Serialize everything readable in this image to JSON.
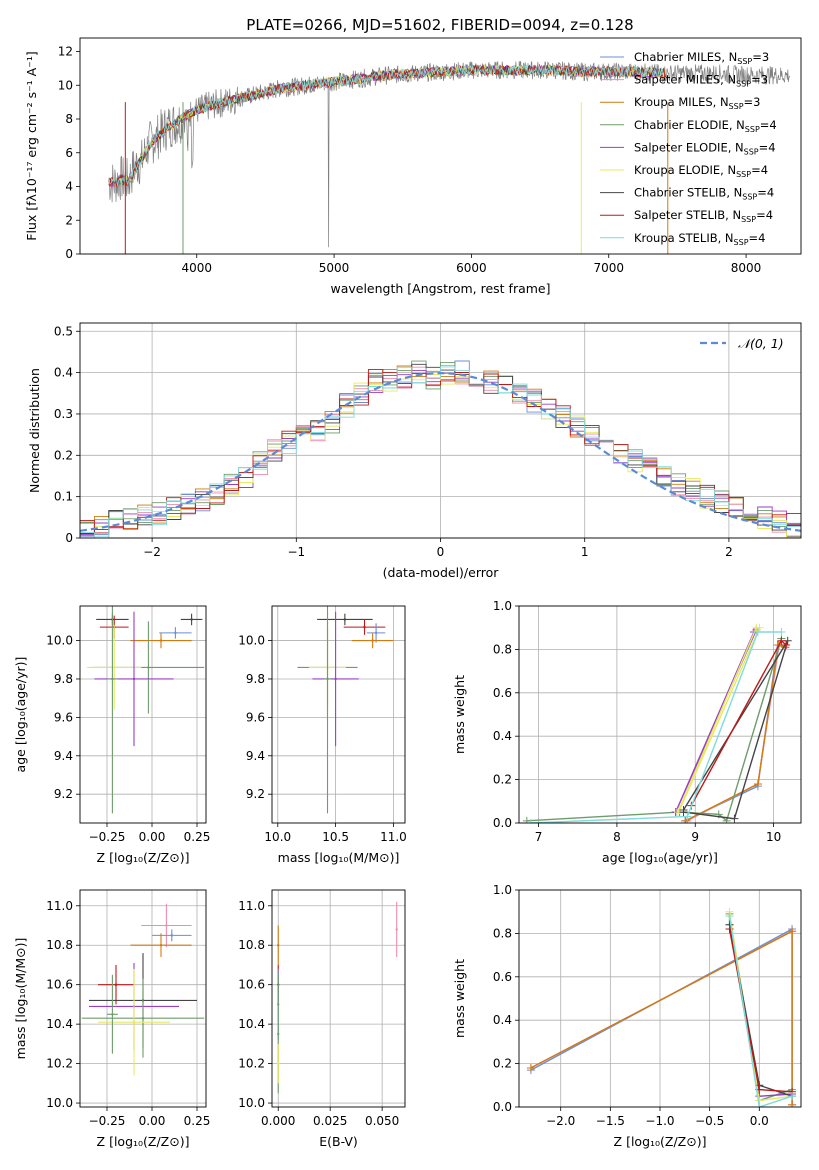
{
  "figure": {
    "title": "PLATE=0266, MJD=51602, FIBERID=0094, z=0.128"
  },
  "colors": [
    "#6c8ed8",
    "#f08cac",
    "#d07a10",
    "#6e9c6a",
    "#9a3ec8",
    "#e6ea60",
    "#444444",
    "#c01818",
    "#7edcdc"
  ],
  "chart_data": [
    {
      "id": "spectrum",
      "type": "line",
      "xlabel": "wavelength [Angstrom, rest frame]",
      "ylabel": "Flux [fλ10⁻¹⁷ erg cm⁻² s⁻¹ A⁻¹]",
      "xlim": [
        3150,
        8400
      ],
      "ylim": [
        0,
        12.8
      ],
      "xticks": [
        4000,
        5000,
        6000,
        7000,
        8000
      ],
      "yticks": [
        0,
        2,
        4,
        6,
        8,
        10,
        12
      ],
      "grid": false,
      "legend_position": "right",
      "data_color": "#808080",
      "observed_x": [
        3360,
        3400,
        3450,
        3500,
        3550,
        3600,
        3650,
        3700,
        3750,
        3800,
        3850,
        3900,
        3950,
        4000,
        4100,
        4200,
        4300,
        4400,
        4500,
        4600,
        4700,
        4800,
        4900,
        5000,
        5200,
        5400,
        5600,
        5800,
        6000,
        6200,
        6400,
        6600,
        6800,
        7000,
        7200,
        7400,
        7600,
        7800,
        8000,
        8200,
        8300
      ],
      "observed_y": [
        4.3,
        4.2,
        4.5,
        4.3,
        5.2,
        5.5,
        6.5,
        6.8,
        7.3,
        7.6,
        7.8,
        8.0,
        8.3,
        8.5,
        8.8,
        9.0,
        9.2,
        9.4,
        9.6,
        9.8,
        9.9,
        10.0,
        10.1,
        10.2,
        10.4,
        10.6,
        10.7,
        10.8,
        10.9,
        10.9,
        10.9,
        10.9,
        10.8,
        10.8,
        10.8,
        10.7,
        10.7,
        10.7,
        10.6,
        10.6,
        10.6
      ],
      "model_x": [
        3360,
        3400,
        3450,
        3500,
        3550,
        3600,
        3650,
        3700,
        3750,
        3800,
        3850,
        3900,
        3950,
        4000,
        4100,
        4200,
        4300,
        4400,
        4500,
        4600,
        4700,
        4800,
        4900,
        5000,
        5200,
        5400,
        5600,
        5800,
        6000,
        6200,
        6400,
        6600,
        6800,
        7000,
        7200,
        7400
      ],
      "model_y": [
        4.3,
        4.2,
        4.4,
        4.3,
        5.0,
        5.6,
        6.4,
        6.9,
        7.2,
        7.6,
        7.8,
        8.1,
        8.3,
        8.5,
        8.8,
        9.0,
        9.2,
        9.4,
        9.6,
        9.8,
        9.9,
        10.0,
        10.1,
        10.2,
        10.4,
        10.6,
        10.7,
        10.8,
        10.9,
        10.9,
        10.9,
        10.9,
        10.8,
        10.8,
        10.8,
        10.7
      ],
      "series": [
        {
          "name": "Chabrier MILES, N$_{SSP}$=3",
          "label": "Chabrier MILES, NSSP=3",
          "sub": "SSP",
          "color": "#6c8ed8"
        },
        {
          "name": "Salpeter MILES, N$_{SSP}$=3",
          "label": "Salpeter MILES, NSSP=3",
          "sub": "SSP",
          "color": "#f08cac"
        },
        {
          "name": "Kroupa MILES, N$_{SSP}$=3",
          "label": "Kroupa MILES, NSSP=3",
          "sub": "SSP",
          "color": "#d07a10"
        },
        {
          "name": "Chabrier ELODIE, N$_{SSP}$=4",
          "label": "Chabrier ELODIE, NSSP=4",
          "sub": "SSP",
          "color": "#6e9c6a"
        },
        {
          "name": "Salpeter ELODIE, N$_{SSP}$=4",
          "label": "Salpeter ELODIE, NSSP=4",
          "sub": "SSP",
          "color": "#9a3ec8"
        },
        {
          "name": "Kroupa ELODIE, N$_{SSP}$=4",
          "label": "Kroupa ELODIE, NSSP=4",
          "sub": "SSP",
          "color": "#e6ea60"
        },
        {
          "name": "Chabrier STELIB, N$_{SSP}$=4",
          "label": "Chabrier STELIB, NSSP=4",
          "sub": "SSP",
          "color": "#444444"
        },
        {
          "name": "Salpeter STELIB, N$_{SSP}$=4",
          "label": "Salpeter STELIB, NSSP=4",
          "sub": "SSP",
          "color": "#c01818"
        },
        {
          "name": "Kroupa STELIB, N$_{SSP}$=4",
          "label": "Kroupa STELIB, NSSP=4",
          "sub": "SSP",
          "color": "#7edcdc"
        }
      ]
    },
    {
      "id": "residuals",
      "type": "line",
      "xlabel": "(data-model)/error",
      "ylabel": "Normed distribution",
      "xlim": [
        -2.5,
        2.5
      ],
      "ylim": [
        0,
        0.52
      ],
      "xticks": [
        -2,
        -1,
        0,
        1,
        2
      ],
      "yticks": [
        0.0,
        0.1,
        0.2,
        0.3,
        0.4,
        0.5
      ],
      "grid": true,
      "legend_position": "top-right",
      "normal_label": "𝒩(0, 1)",
      "normal_color": "#5b8bd8",
      "bins": [
        -2.5,
        -2.4,
        -2.3,
        -2.2,
        -2.1,
        -2.0,
        -1.9,
        -1.8,
        -1.7,
        -1.6,
        -1.5,
        -1.4,
        -1.3,
        -1.2,
        -1.1,
        -1.0,
        -0.9,
        -0.8,
        -0.7,
        -0.6,
        -0.5,
        -0.4,
        -0.3,
        -0.2,
        -0.1,
        0.0,
        0.1,
        0.2,
        0.3,
        0.4,
        0.5,
        0.6,
        0.7,
        0.8,
        0.9,
        1.0,
        1.1,
        1.2,
        1.3,
        1.4,
        1.5,
        1.6,
        1.7,
        1.8,
        1.9,
        2.0,
        2.1,
        2.2,
        2.3,
        2.4
      ],
      "hist_base": [
        0.02,
        0.03,
        0.04,
        0.05,
        0.05,
        0.06,
        0.07,
        0.08,
        0.09,
        0.11,
        0.13,
        0.15,
        0.18,
        0.21,
        0.23,
        0.25,
        0.26,
        0.28,
        0.32,
        0.35,
        0.38,
        0.38,
        0.39,
        0.4,
        0.39,
        0.4,
        0.4,
        0.39,
        0.38,
        0.37,
        0.35,
        0.33,
        0.31,
        0.29,
        0.27,
        0.25,
        0.23,
        0.21,
        0.19,
        0.17,
        0.15,
        0.13,
        0.12,
        0.1,
        0.09,
        0.07,
        0.06,
        0.05,
        0.04,
        0.03
      ]
    },
    {
      "id": "z-age",
      "type": "scatter",
      "xlabel": "Z [log₁₀(Z/Z⊙)]",
      "ylabel": "age  [log₁₀(age/yr)]",
      "xlim": [
        -0.4,
        0.3
      ],
      "ylim": [
        9.05,
        10.18
      ],
      "xticks": [
        "-0.25",
        "0.00",
        "0.25"
      ],
      "yticks": [
        "9.2",
        "9.4",
        "9.6",
        "9.8",
        "10.0"
      ],
      "grid": true,
      "points": [
        {
          "x": -0.22,
          "y": 10.11,
          "xerr": 0.09,
          "yerr": 0.03,
          "c": 6
        },
        {
          "x": 0.22,
          "y": 10.11,
          "xerr": 0.06,
          "yerr": 0.03,
          "c": 6
        },
        {
          "x": 0.13,
          "y": 10.04,
          "xerr": 0.09,
          "yerr": 0.03,
          "c": 0
        },
        {
          "x": 0.05,
          "y": 10.0,
          "xerr": 0.17,
          "yerr": 0.04,
          "c": 2
        },
        {
          "x": -0.21,
          "y": 10.07,
          "xerr": 0.08,
          "yerr": 0.06,
          "c": 7
        },
        {
          "x": -0.02,
          "y": 9.86,
          "xerr": 0.31,
          "yerr": 0.24,
          "c": 3
        },
        {
          "x": -0.21,
          "y": 9.86,
          "xerr": 0.15,
          "yerr": 0.22,
          "c": 5
        },
        {
          "x": -0.1,
          "y": 9.8,
          "xerr": 0.22,
          "yerr": 0.35,
          "c": 4
        },
        {
          "x": -0.22,
          "y": 9.8,
          "xerr": 0.03,
          "yerr": 0.7,
          "c": 3
        }
      ]
    },
    {
      "id": "mass-age",
      "type": "scatter",
      "xlabel": "mass [log₁₀(M/M⊙)]",
      "ylabel": "",
      "xlim": [
        9.95,
        11.1
      ],
      "ylim": [
        9.05,
        10.18
      ],
      "xticks": [
        "10.0",
        "10.5",
        "11.0"
      ],
      "yticks": [
        "9.2",
        "9.4",
        "9.6",
        "9.8",
        "10.0"
      ],
      "grid": true,
      "points": [
        {
          "x": 10.58,
          "y": 10.11,
          "xerr": 0.24,
          "yerr": 0.03,
          "c": 6
        },
        {
          "x": 10.75,
          "y": 10.07,
          "xerr": 0.18,
          "yerr": 0.04,
          "c": 7
        },
        {
          "x": 10.85,
          "y": 10.04,
          "xerr": 0.08,
          "yerr": 0.05,
          "c": 0
        },
        {
          "x": 10.82,
          "y": 10.0,
          "xerr": 0.18,
          "yerr": 0.04,
          "c": 2
        },
        {
          "x": 10.43,
          "y": 9.86,
          "xerr": 0.26,
          "yerr": 0.2,
          "c": 3
        },
        {
          "x": 10.43,
          "y": 9.86,
          "xerr": 0.16,
          "yerr": 0.24,
          "c": 5
        },
        {
          "x": 10.5,
          "y": 9.8,
          "xerr": 0.2,
          "yerr": 0.35,
          "c": 4
        },
        {
          "x": 10.43,
          "y": 9.8,
          "xerr": 0.03,
          "yerr": 0.7,
          "c": 3
        }
      ]
    },
    {
      "id": "age-weight",
      "type": "line",
      "xlabel": "age  [log₁₀(age/yr)]",
      "ylabel": "mass weight",
      "xlim": [
        6.75,
        10.35
      ],
      "ylim": [
        0,
        1.0
      ],
      "xticks": [
        "7",
        "8",
        "9",
        "10"
      ],
      "yticks": [
        "0.0",
        "0.2",
        "0.4",
        "0.6",
        "0.8",
        "1.0"
      ],
      "grid": true,
      "series": [
        {
          "c": 0,
          "x": [
            8.87,
            9.8,
            10.05,
            10.15
          ],
          "y": [
            0.01,
            0.17,
            0.82,
            0.81
          ]
        },
        {
          "c": 1,
          "x": [
            8.9,
            9.8,
            10.07,
            10.15
          ],
          "y": [
            0.01,
            0.18,
            0.82,
            0.81
          ]
        },
        {
          "c": 2,
          "x": [
            8.88,
            9.8,
            10.06,
            10.15
          ],
          "y": [
            0.01,
            0.18,
            0.82,
            0.81
          ]
        },
        {
          "c": 3,
          "x": [
            6.85,
            8.8,
            9.3,
            9.4,
            10.1
          ],
          "y": [
            0.01,
            0.05,
            0.04,
            0.01,
            0.85
          ]
        },
        {
          "c": 4,
          "x": [
            8.75,
            9.75,
            9.78,
            8.75
          ],
          "y": [
            0.05,
            0.88,
            0.89,
            0.05
          ]
        },
        {
          "c": 5,
          "x": [
            8.78,
            9.78,
            9.82,
            8.8
          ],
          "y": [
            0.05,
            0.9,
            0.9,
            0.06
          ]
        },
        {
          "c": 6,
          "x": [
            8.85,
            9.5,
            10.18,
            8.85
          ],
          "y": [
            0.05,
            0.02,
            0.84,
            0.06
          ]
        },
        {
          "c": 7,
          "x": [
            8.95,
            10.1,
            10.16
          ],
          "y": [
            0.08,
            0.84,
            0.82
          ]
        },
        {
          "c": 8,
          "x": [
            6.9,
            8.9,
            9.8,
            10.1
          ],
          "y": [
            0.0,
            0.03,
            0.88,
            0.88
          ]
        }
      ]
    },
    {
      "id": "z-mass",
      "type": "scatter",
      "xlabel": "Z [log₁₀(Z/Z⊙)]",
      "ylabel": "mass [log₁₀(M/M⊙)]",
      "xlim": [
        -0.4,
        0.3
      ],
      "ylim": [
        9.98,
        11.08
      ],
      "xticks": [
        "-0.25",
        "0.00",
        "0.25"
      ],
      "yticks": [
        "10.0",
        "10.2",
        "10.4",
        "10.6",
        "10.8",
        "11.0"
      ],
      "grid": true,
      "points": [
        {
          "x": 0.08,
          "y": 10.9,
          "xerr": 0.14,
          "yerr": 0.11,
          "c": 1
        },
        {
          "x": 0.11,
          "y": 10.85,
          "xerr": 0.11,
          "yerr": 0.03,
          "c": 0
        },
        {
          "x": 0.05,
          "y": 10.8,
          "xerr": 0.17,
          "yerr": 0.06,
          "c": 2
        },
        {
          "x": -0.2,
          "y": 10.6,
          "xerr": 0.1,
          "yerr": 0.1,
          "c": 7
        },
        {
          "x": -0.05,
          "y": 10.52,
          "xerr": 0.3,
          "yerr": 0.24,
          "c": 6
        },
        {
          "x": -0.1,
          "y": 10.49,
          "xerr": 0.25,
          "yerr": 0.22,
          "c": 4
        },
        {
          "x": -0.05,
          "y": 10.43,
          "xerr": 0.34,
          "yerr": 0.2,
          "c": 3
        },
        {
          "x": -0.1,
          "y": 10.41,
          "xerr": 0.2,
          "yerr": 0.27,
          "c": 5
        },
        {
          "x": -0.22,
          "y": 10.45,
          "xerr": 0.03,
          "yerr": 0.2,
          "c": 3
        }
      ]
    },
    {
      "id": "ebv-mass",
      "type": "scatter",
      "xlabel": "E(B-V)",
      "ylabel": "",
      "xlim": [
        -0.003,
        0.061
      ],
      "ylim": [
        9.98,
        11.08
      ],
      "xticks": [
        "0.000",
        "0.025",
        "0.050"
      ],
      "yticks": [
        "10.0",
        "10.2",
        "10.4",
        "10.6",
        "10.8",
        "11.0"
      ],
      "grid": true,
      "points": [
        {
          "x": 0.057,
          "y": 10.88,
          "xerr": 0.0,
          "yerr": 0.14,
          "c": 1
        },
        {
          "x": 0.0,
          "y": 10.8,
          "xerr": 0.0,
          "yerr": 0.1,
          "c": 2
        },
        {
          "x": 0.0,
          "y": 10.6,
          "xerr": 0.0,
          "yerr": 0.1,
          "c": 7
        },
        {
          "x": 0.0,
          "y": 10.5,
          "xerr": 0.0,
          "yerr": 0.18,
          "c": 0
        },
        {
          "x": 0.0,
          "y": 10.35,
          "xerr": 0.0,
          "yerr": 0.3,
          "c": 3
        },
        {
          "x": 0.0,
          "y": 10.2,
          "xerr": 0.0,
          "yerr": 0.1,
          "c": 5
        }
      ]
    },
    {
      "id": "z-weight",
      "type": "line",
      "xlabel": "Z [log₁₀(Z/Z⊙)]",
      "ylabel": "mass weight",
      "xlim": [
        -2.42,
        0.42
      ],
      "ylim": [
        0,
        1.0
      ],
      "xticks": [
        "-2.0",
        "-1.5",
        "-1.0",
        "-0.5",
        "0.0"
      ],
      "yticks": [
        "0.0",
        "0.2",
        "0.4",
        "0.6",
        "0.8",
        "1.0"
      ],
      "grid": true,
      "series": [
        {
          "c": 0,
          "x": [
            -2.3,
            0.33,
            0.33
          ],
          "y": [
            0.17,
            0.82,
            0.01
          ]
        },
        {
          "c": 1,
          "x": [
            -2.3,
            0.33,
            0.33
          ],
          "y": [
            0.18,
            0.81,
            0.01
          ]
        },
        {
          "c": 2,
          "x": [
            -2.3,
            0.33,
            0.33
          ],
          "y": [
            0.18,
            0.81,
            0.01
          ]
        },
        {
          "c": 3,
          "x": [
            -0.3,
            -0.3,
            0.0,
            0.33
          ],
          "y": [
            0.89,
            0.84,
            0.03,
            0.08
          ]
        },
        {
          "c": 4,
          "x": [
            -0.3,
            0.0,
            0.33
          ],
          "y": [
            0.88,
            0.05,
            0.06
          ]
        },
        {
          "c": 5,
          "x": [
            -0.3,
            0.0,
            0.33
          ],
          "y": [
            0.9,
            0.03,
            0.05
          ]
        },
        {
          "c": 6,
          "x": [
            -0.3,
            0.0,
            0.33
          ],
          "y": [
            0.84,
            0.1,
            0.05
          ]
        },
        {
          "c": 7,
          "x": [
            -0.3,
            0.0,
            0.33
          ],
          "y": [
            0.82,
            0.08,
            0.07
          ]
        },
        {
          "c": 8,
          "x": [
            -0.3,
            0.0,
            0.33
          ],
          "y": [
            0.88,
            0.0,
            0.05
          ]
        }
      ]
    }
  ]
}
